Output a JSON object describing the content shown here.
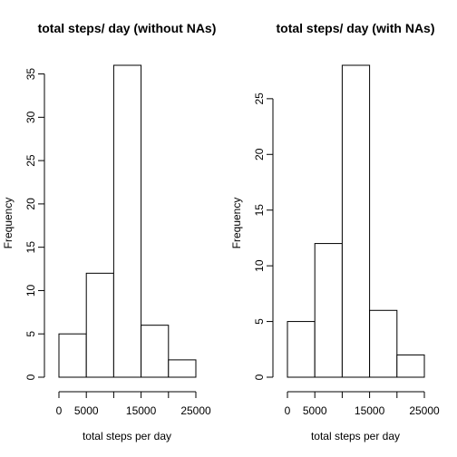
{
  "chart_data": [
    {
      "type": "bar",
      "title": "total steps/ day (without NAs)",
      "xlabel": "total steps per day",
      "ylabel": "Frequency",
      "bins": [
        [
          0,
          5000
        ],
        [
          5000,
          10000
        ],
        [
          10000,
          15000
        ],
        [
          15000,
          20000
        ],
        [
          20000,
          25000
        ]
      ],
      "values": [
        5,
        12,
        36,
        6,
        2
      ],
      "xlim": [
        0,
        25000
      ],
      "ylim": [
        0,
        36
      ],
      "x_ticks": [
        0,
        5000,
        15000,
        25000
      ],
      "x_tick_marks": [
        0,
        5000,
        10000,
        15000,
        20000,
        25000
      ],
      "y_ticks": [
        0,
        5,
        10,
        15,
        20,
        25,
        30,
        35
      ],
      "grid": false,
      "legend": "none"
    },
    {
      "type": "bar",
      "title": "total steps/ day (with NAs)",
      "xlabel": "total steps per day",
      "ylabel": "Frequency",
      "bins": [
        [
          0,
          5000
        ],
        [
          5000,
          10000
        ],
        [
          10000,
          15000
        ],
        [
          15000,
          20000
        ],
        [
          20000,
          25000
        ]
      ],
      "values": [
        5,
        12,
        28,
        6,
        2
      ],
      "xlim": [
        0,
        25000
      ],
      "ylim": [
        0,
        28
      ],
      "x_ticks": [
        0,
        5000,
        15000,
        25000
      ],
      "x_tick_marks": [
        0,
        5000,
        10000,
        15000,
        20000,
        25000
      ],
      "y_ticks": [
        0,
        5,
        10,
        15,
        20,
        25
      ],
      "grid": false,
      "legend": "none"
    }
  ]
}
